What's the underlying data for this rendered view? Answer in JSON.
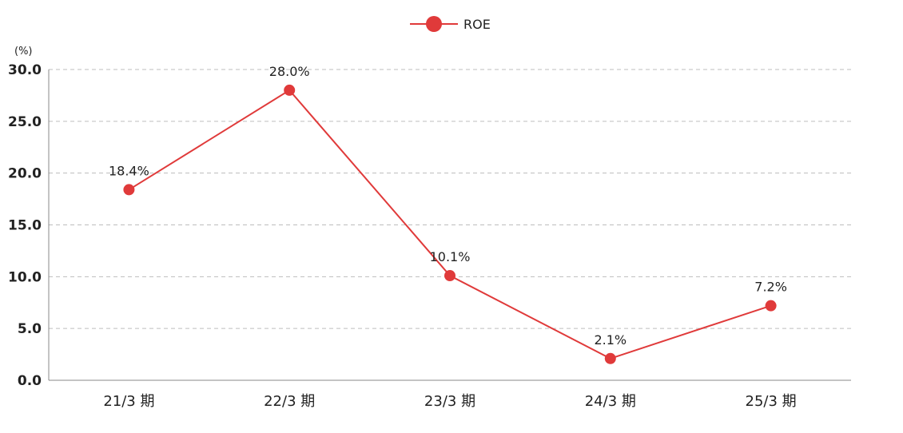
{
  "chart_data": {
    "type": "line",
    "title": "",
    "unit_label": "(%)",
    "xlabel": "",
    "ylabel": "",
    "categories": [
      "21/3 期",
      "22/3 期",
      "23/3 期",
      "24/3 期",
      "25/3 期"
    ],
    "series": [
      {
        "name": "ROE",
        "values": [
          18.4,
          28.0,
          10.1,
          2.1,
          7.2
        ],
        "data_labels": [
          "18.4%",
          "28.0%",
          "10.1%",
          "2.1%",
          "7.2%"
        ],
        "color": "#e03a3a"
      }
    ],
    "ylim": [
      0,
      30
    ],
    "yticks": [
      "0.0",
      "5.0",
      "10.0",
      "15.0",
      "20.0",
      "25.0",
      "30.0"
    ],
    "grid": "horizontal dashed",
    "legend": "top-center"
  }
}
